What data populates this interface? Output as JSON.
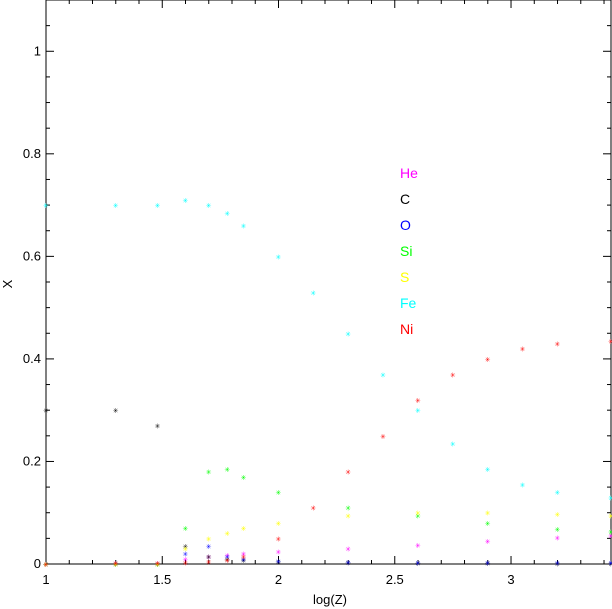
{
  "chart_data": {
    "type": "scatter",
    "xlabel": "log(Z)",
    "ylabel": "X",
    "xlim": [
      1.0,
      3.43
    ],
    "ylim": [
      0.0,
      1.1
    ],
    "xticks": [
      1,
      1.5,
      2,
      2.5,
      3
    ],
    "xtick_labels": [
      "1",
      "1.5",
      "2",
      "2.5",
      "3"
    ],
    "yticks": [
      0,
      0.2,
      0.4,
      0.6,
      0.8,
      1
    ],
    "ytick_labels": [
      "0",
      "0.2",
      "0.4",
      "0.6",
      "0.8",
      "1"
    ],
    "marker": "*",
    "marker_glyph": "✳",
    "legend_position": "upper-center",
    "series": [
      {
        "name": "He",
        "color": "#ff00ff",
        "x": [
          1.0,
          1.3,
          1.48,
          1.6,
          1.7,
          1.78,
          1.85,
          2.0,
          2.3,
          2.6,
          2.9,
          3.2,
          3.43
        ],
        "y": [
          0.0,
          0.002,
          0.002,
          0.01,
          0.015,
          0.018,
          0.02,
          0.024,
          0.03,
          0.037,
          0.045,
          0.052,
          0.056
        ]
      },
      {
        "name": "C",
        "color": "#000000",
        "x": [
          1.0,
          1.3,
          1.48,
          1.6,
          1.7,
          1.78,
          1.85,
          2.0,
          2.3,
          2.6,
          2.9,
          3.2,
          3.43
        ],
        "y": [
          0.3,
          0.3,
          0.27,
          0.035,
          0.015,
          0.01,
          0.008,
          0.005,
          0.003,
          0.002,
          0.002,
          0.001,
          0.001
        ]
      },
      {
        "name": "O",
        "color": "#0000ff",
        "x": [
          1.0,
          1.3,
          1.48,
          1.6,
          1.7,
          1.78,
          1.85,
          2.0,
          2.3,
          2.6,
          2.9,
          3.2,
          3.43
        ],
        "y": [
          0.0,
          0.0,
          0.0,
          0.02,
          0.035,
          0.015,
          0.01,
          0.006,
          0.004,
          0.003,
          0.003,
          0.003,
          0.003
        ]
      },
      {
        "name": "Si",
        "color": "#00ff00",
        "x": [
          1.0,
          1.3,
          1.48,
          1.6,
          1.7,
          1.78,
          1.85,
          2.0,
          2.3,
          2.6,
          2.9,
          3.2,
          3.43
        ],
        "y": [
          0.0,
          0.0,
          0.0,
          0.07,
          0.18,
          0.185,
          0.17,
          0.14,
          0.11,
          0.095,
          0.08,
          0.068,
          0.063
        ]
      },
      {
        "name": "S",
        "color": "#ffff00",
        "x": [
          1.0,
          1.3,
          1.48,
          1.6,
          1.7,
          1.78,
          1.85,
          2.0,
          2.3,
          2.6,
          2.9,
          3.2,
          3.43
        ],
        "y": [
          0.0,
          0.0,
          0.0,
          0.03,
          0.05,
          0.06,
          0.07,
          0.08,
          0.095,
          0.1,
          0.1,
          0.098,
          0.095
        ]
      },
      {
        "name": "Fe",
        "color": "#00ffff",
        "x": [
          1.0,
          1.3,
          1.48,
          1.6,
          1.7,
          1.78,
          1.85,
          2.0,
          2.15,
          2.3,
          2.45,
          2.6,
          2.75,
          2.9,
          3.05,
          3.2,
          3.43
        ],
        "y": [
          0.7,
          0.7,
          0.7,
          0.71,
          0.7,
          0.685,
          0.66,
          0.6,
          0.53,
          0.45,
          0.37,
          0.3,
          0.235,
          0.185,
          0.155,
          0.14,
          0.13
        ]
      },
      {
        "name": "Ni",
        "color": "#ff0000",
        "x": [
          1.0,
          1.3,
          1.48,
          1.6,
          1.7,
          1.78,
          1.85,
          2.0,
          2.15,
          2.3,
          2.45,
          2.6,
          2.75,
          2.9,
          3.05,
          3.2,
          3.43
        ],
        "y": [
          0.0,
          0.002,
          0.002,
          0.003,
          0.005,
          0.008,
          0.015,
          0.05,
          0.11,
          0.18,
          0.25,
          0.32,
          0.37,
          0.4,
          0.42,
          0.43,
          0.435
        ]
      }
    ]
  }
}
